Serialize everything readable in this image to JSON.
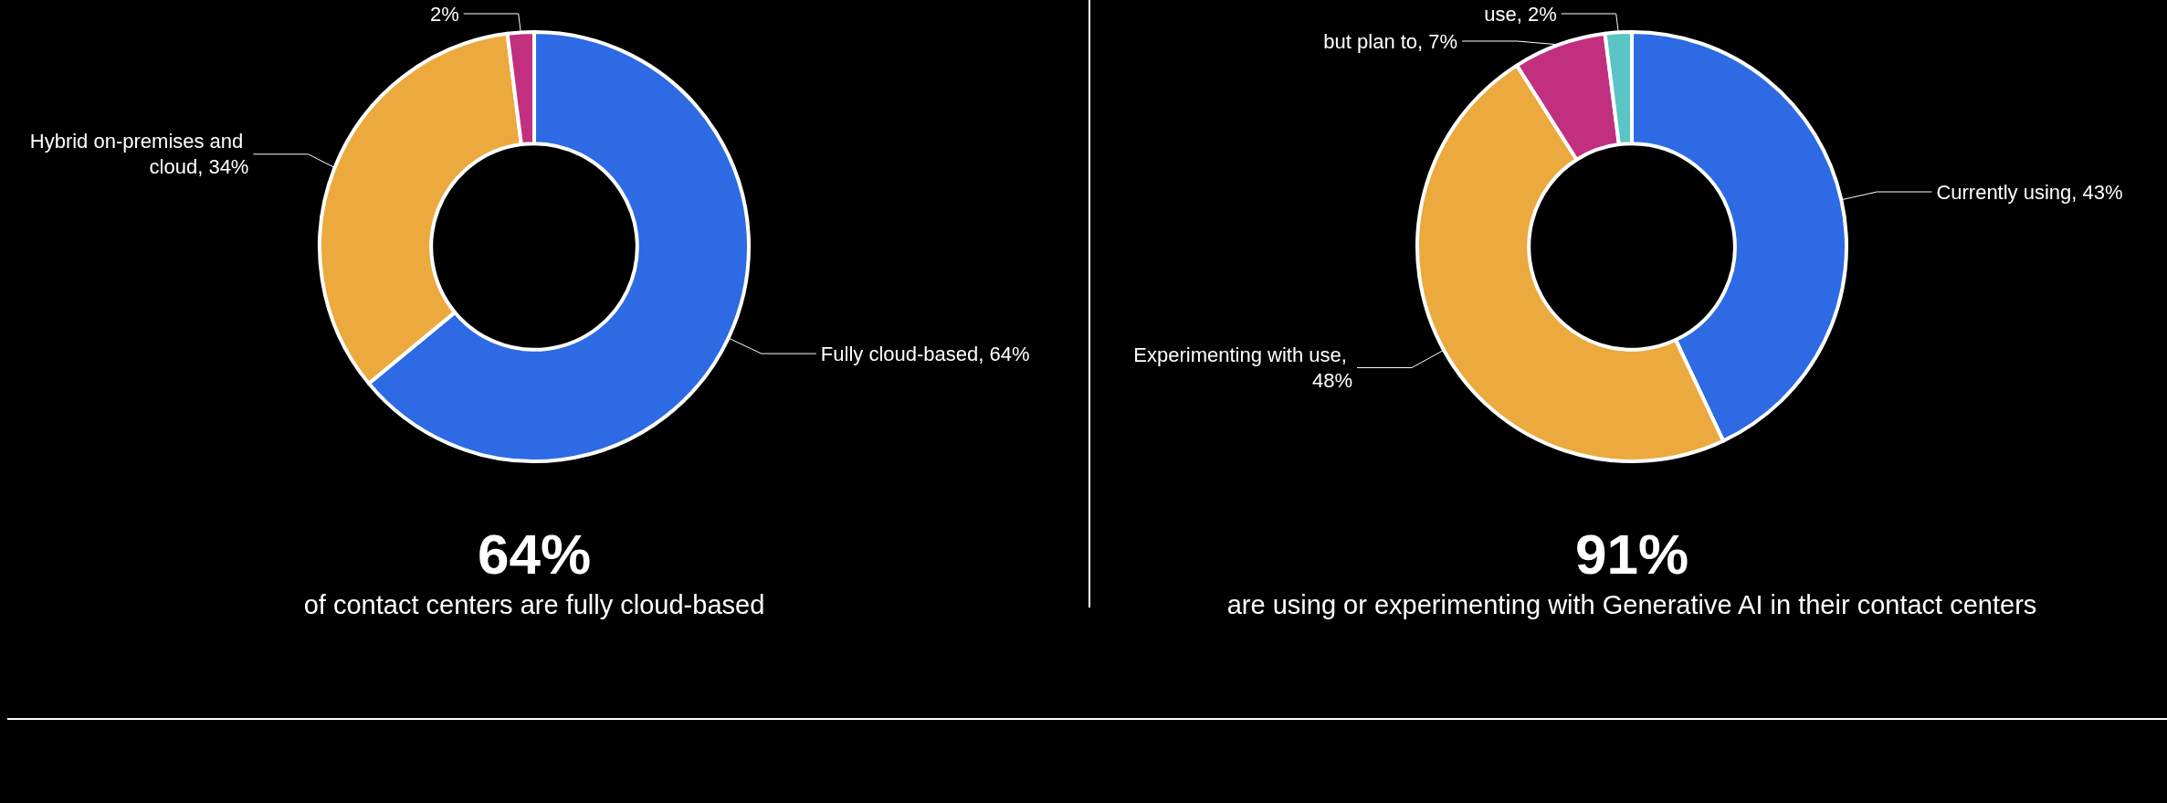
{
  "chart_data": [
    {
      "type": "donut",
      "title": "64%",
      "subtitle": "of contact centers are fully cloud-based",
      "categories": [
        null,
        null,
        null
      ],
      "values": [
        64,
        34,
        2
      ],
      "value_labels": [
        "Fully cloud-based, 64%",
        "Hybrid on-premises and cloud, 34%",
        "2%"
      ],
      "colors": [
        "#2d6ae3",
        "#eca93e",
        "#c22f7e"
      ]
    },
    {
      "type": "donut",
      "title": "91%",
      "subtitle": "are using or experimenting with Generative AI in their contact centers",
      "categories": [
        null,
        null,
        null,
        null
      ],
      "values": [
        43,
        48,
        7,
        2
      ],
      "value_labels": [
        "Currently using, 43%",
        "Experimenting with use, 48%",
        "but plan to, 7%",
        "use, 2%"
      ],
      "colors": [
        "#2d6ae3",
        "#eca93e",
        "#c22f7e",
        "#5bc4c4"
      ]
    }
  ]
}
